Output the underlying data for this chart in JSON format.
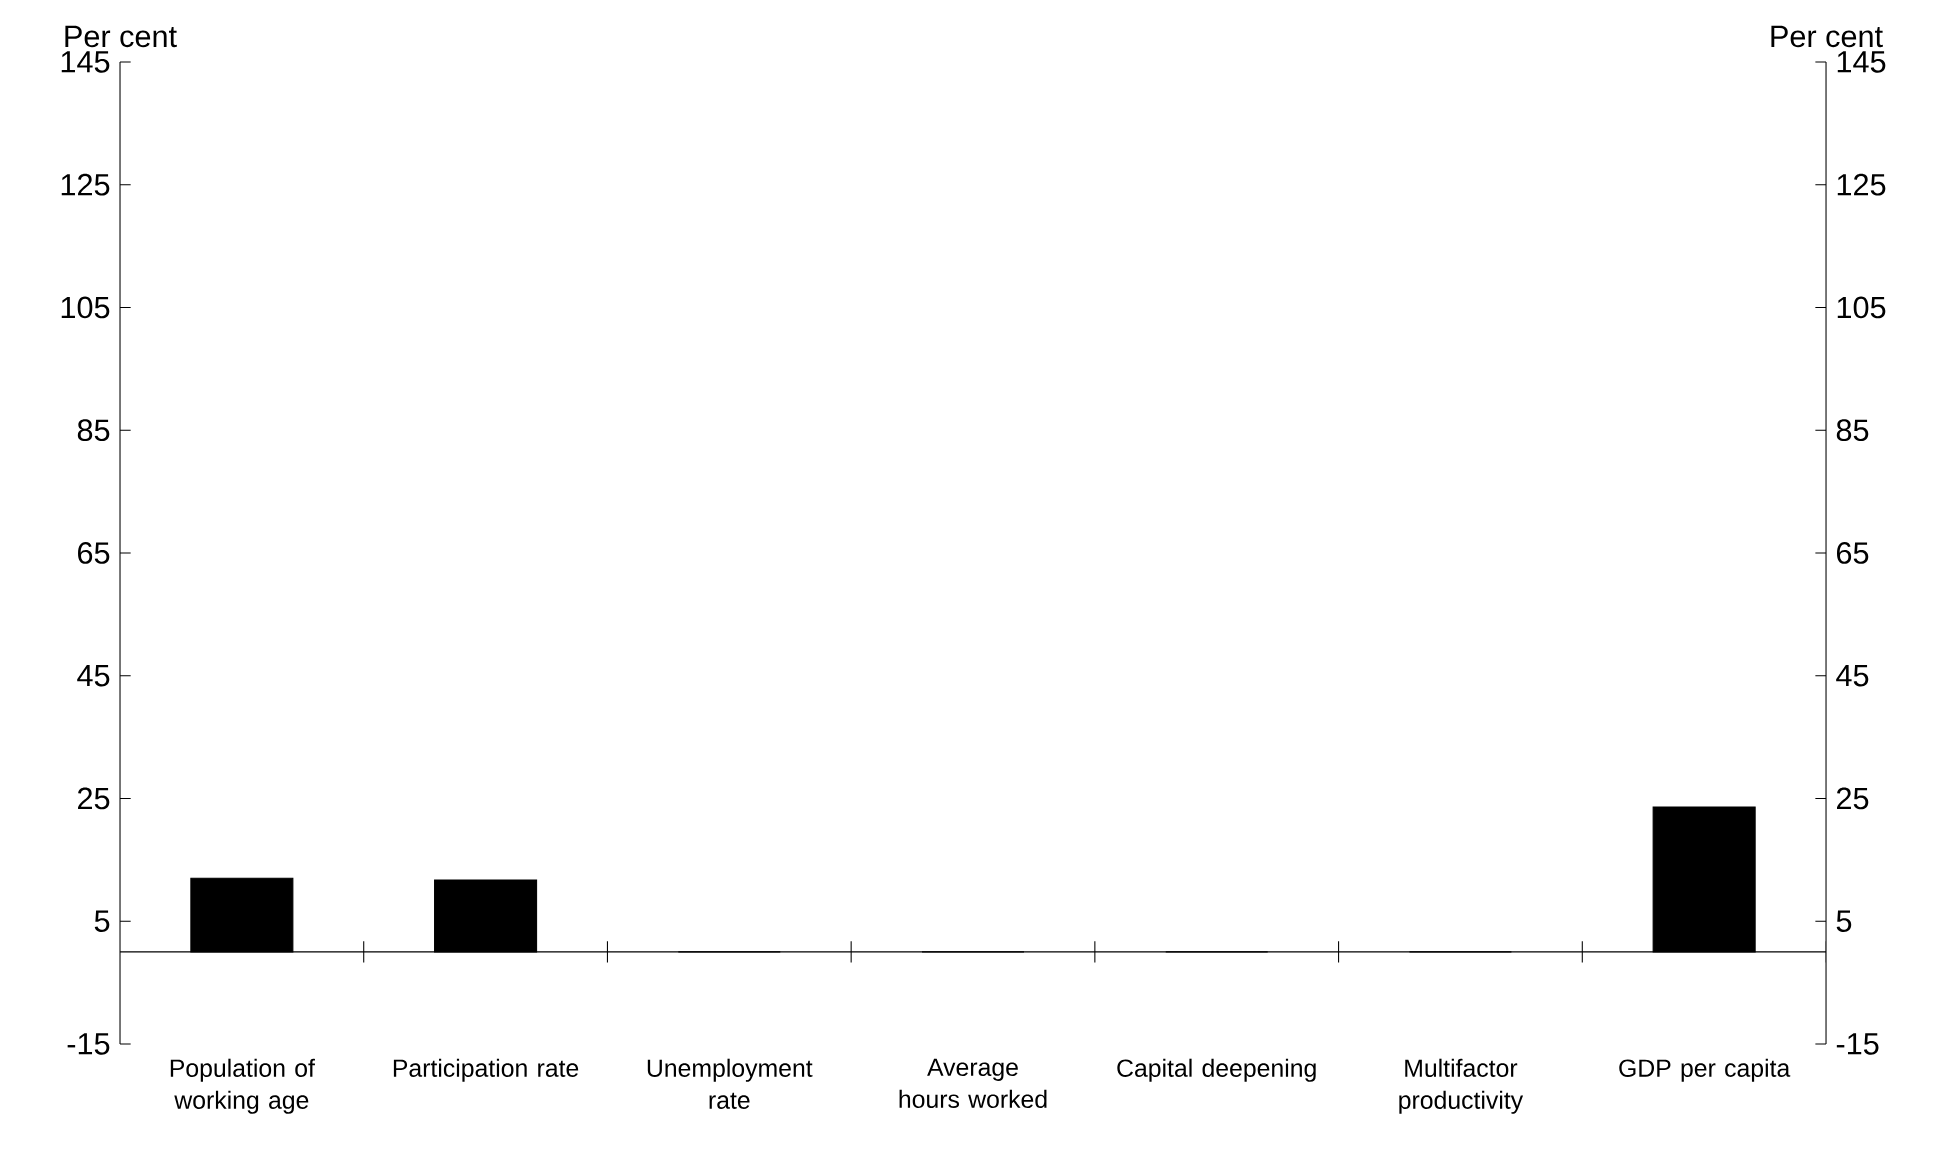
{
  "chart_data": {
    "type": "bar",
    "categories": [
      "Population of working age",
      "Participation rate",
      "Unemployment rate",
      "Average hours worked",
      "Capital deepening",
      "Multifactor productivity",
      "GDP per capita"
    ],
    "values": [
      12.0,
      11.7,
      0,
      0,
      0,
      0,
      23.6
    ],
    "color": "#000000",
    "ylabel": "Per cent",
    "y2label": "Per cent",
    "ylim": [
      -15,
      145
    ],
    "yticks": [
      -15,
      5,
      25,
      45,
      65,
      85,
      105,
      125,
      145
    ],
    "y2lim": [
      -15,
      145
    ],
    "y2ticks": [
      -15,
      5,
      25,
      45,
      65,
      85,
      105,
      125,
      145
    ],
    "grid": false
  }
}
